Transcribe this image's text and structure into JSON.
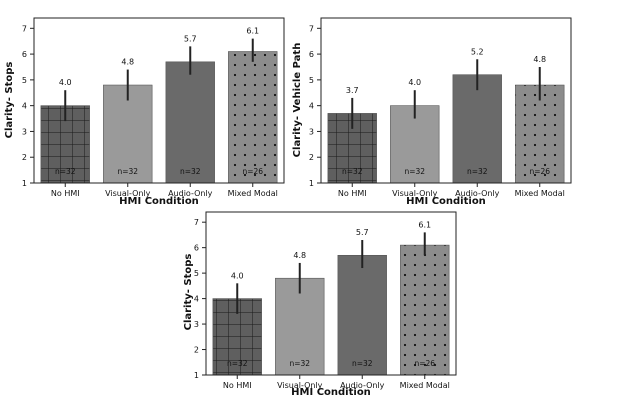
{
  "chart_data": [
    {
      "type": "bar",
      "title": "",
      "xlabel": "HMI Condition",
      "ylabel": "Clarity- Stops",
      "ylim": [
        1,
        7.4
      ],
      "yticks": [
        "1",
        "2",
        "3",
        "4",
        "5",
        "6",
        "7"
      ],
      "categories": [
        "No HMI",
        "Visual-Only",
        "Audio-Only",
        "Mixed Modal"
      ],
      "values": [
        4.0,
        4.8,
        5.7,
        6.1
      ],
      "value_labels": [
        "4.0",
        "4.8",
        "5.7",
        "6.1"
      ],
      "error_low": [
        3.4,
        4.2,
        5.2,
        5.7
      ],
      "error_high": [
        4.6,
        5.4,
        6.3,
        6.6
      ],
      "n_labels": [
        "n=32",
        "n=32",
        "n=32",
        "n=26"
      ],
      "patterns": [
        "grid",
        "solid-light",
        "solid-dark",
        "dots"
      ]
    },
    {
      "type": "bar",
      "title": "",
      "xlabel": "HMI Condition",
      "ylabel": "Clarity- Vehicle Path",
      "ylim": [
        1,
        7.4
      ],
      "yticks": [
        "1",
        "2",
        "3",
        "4",
        "5",
        "6",
        "7"
      ],
      "categories": [
        "No HMI",
        "Visual-Only",
        "Audio-Only",
        "Mixed Modal"
      ],
      "values": [
        3.7,
        4.0,
        5.2,
        4.8
      ],
      "value_labels": [
        "3.7",
        "4.0",
        "5.2",
        "4.8"
      ],
      "error_low": [
        3.1,
        3.5,
        4.6,
        4.2
      ],
      "error_high": [
        4.3,
        4.6,
        5.8,
        5.5
      ],
      "n_labels": [
        "n=32",
        "n=32",
        "n=32",
        "n=26"
      ],
      "patterns": [
        "grid",
        "solid-light",
        "solid-dark",
        "dots"
      ]
    },
    {
      "type": "bar",
      "title": "",
      "xlabel": "HMI Condition",
      "ylabel": "Clarity- Stops",
      "ylim": [
        1,
        7.4
      ],
      "yticks": [
        "1",
        "2",
        "3",
        "4",
        "5",
        "6",
        "7"
      ],
      "categories": [
        "No HMI",
        "Visual-Only",
        "Audio-Only",
        "Mixed Modal"
      ],
      "values": [
        4.0,
        4.8,
        5.7,
        6.1
      ],
      "value_labels": [
        "4.0",
        "4.8",
        "5.7",
        "6.1"
      ],
      "error_low": [
        3.4,
        4.2,
        5.2,
        5.7
      ],
      "error_high": [
        4.6,
        5.4,
        6.3,
        6.6
      ],
      "n_labels": [
        "n=32",
        "n=32",
        "n=32",
        "n=26"
      ],
      "patterns": [
        "grid",
        "solid-light",
        "solid-dark",
        "dots"
      ]
    }
  ],
  "colors": {
    "grid_fill": "#5f5f5f",
    "grid_lines": "#1a1a1a",
    "light_bar": "#9a9a9a",
    "dark_bar": "#6a6a6a",
    "dots_fill": "#8c8c8c",
    "dots": "#111111",
    "errorbar": "#222222",
    "axis": "#222222"
  }
}
